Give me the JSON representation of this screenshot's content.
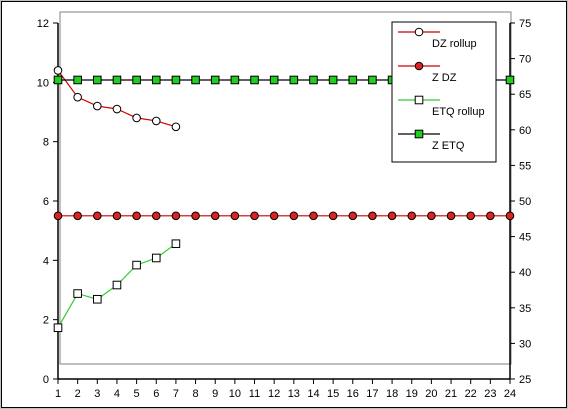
{
  "chart_data": {
    "type": "line",
    "x": [
      1,
      2,
      3,
      4,
      5,
      6,
      7,
      8,
      9,
      10,
      11,
      12,
      13,
      14,
      15,
      16,
      17,
      18,
      19,
      20,
      21,
      22,
      23,
      24
    ],
    "xlim": [
      1,
      24
    ],
    "ylim_left": [
      0,
      12
    ],
    "yticks_left": [
      0,
      2,
      4,
      6,
      8,
      10,
      12
    ],
    "ylim_right": [
      25,
      75
    ],
    "yticks_right": [
      25,
      30,
      35,
      40,
      45,
      50,
      55,
      60,
      65,
      70,
      75
    ],
    "grid": false,
    "legend_position": "top-right",
    "series": [
      {
        "name": "DZ  rollup",
        "axis": "left",
        "x": [
          1,
          2,
          3,
          4,
          5,
          6,
          7
        ],
        "values": [
          10.4,
          9.5,
          9.2,
          9.1,
          8.8,
          8.7,
          8.5
        ],
        "line_color": "#cc0000",
        "marker": "circle",
        "marker_fill": "#ffffff"
      },
      {
        "name": "Z  DZ",
        "axis": "left",
        "x": [
          1,
          2,
          3,
          4,
          5,
          6,
          7,
          8,
          9,
          10,
          11,
          12,
          13,
          14,
          15,
          16,
          17,
          18,
          19,
          20,
          21,
          22,
          23,
          24
        ],
        "values": [
          5.5,
          5.5,
          5.5,
          5.5,
          5.5,
          5.5,
          5.5,
          5.5,
          5.5,
          5.5,
          5.5,
          5.5,
          5.5,
          5.5,
          5.5,
          5.5,
          5.5,
          5.5,
          5.5,
          5.5,
          5.5,
          5.5,
          5.5,
          5.5
        ],
        "line_color": "#cc0000",
        "marker": "circle",
        "marker_fill": "#dd2222"
      },
      {
        "name": "ETQ rollup",
        "axis": "right",
        "x": [
          1,
          2,
          3,
          4,
          5,
          6,
          7
        ],
        "values": [
          32.2,
          37.0,
          36.2,
          38.2,
          41.0,
          42.0,
          44.0
        ],
        "line_color": "#33cc33",
        "marker": "square",
        "marker_fill": "#ffffff"
      },
      {
        "name": "Z  ETQ",
        "axis": "right",
        "x": [
          1,
          2,
          3,
          4,
          5,
          6,
          7,
          8,
          9,
          10,
          11,
          12,
          13,
          14,
          15,
          16,
          17,
          18,
          19,
          20,
          21,
          22,
          23,
          24
        ],
        "values": [
          67,
          67,
          67,
          67,
          67,
          67,
          67,
          67,
          67,
          67,
          67,
          67,
          67,
          67,
          67,
          67,
          67,
          67,
          67,
          67,
          67,
          67,
          67,
          67
        ],
        "line_color": "#000000",
        "marker": "square",
        "marker_fill": "#22cc22"
      }
    ]
  }
}
